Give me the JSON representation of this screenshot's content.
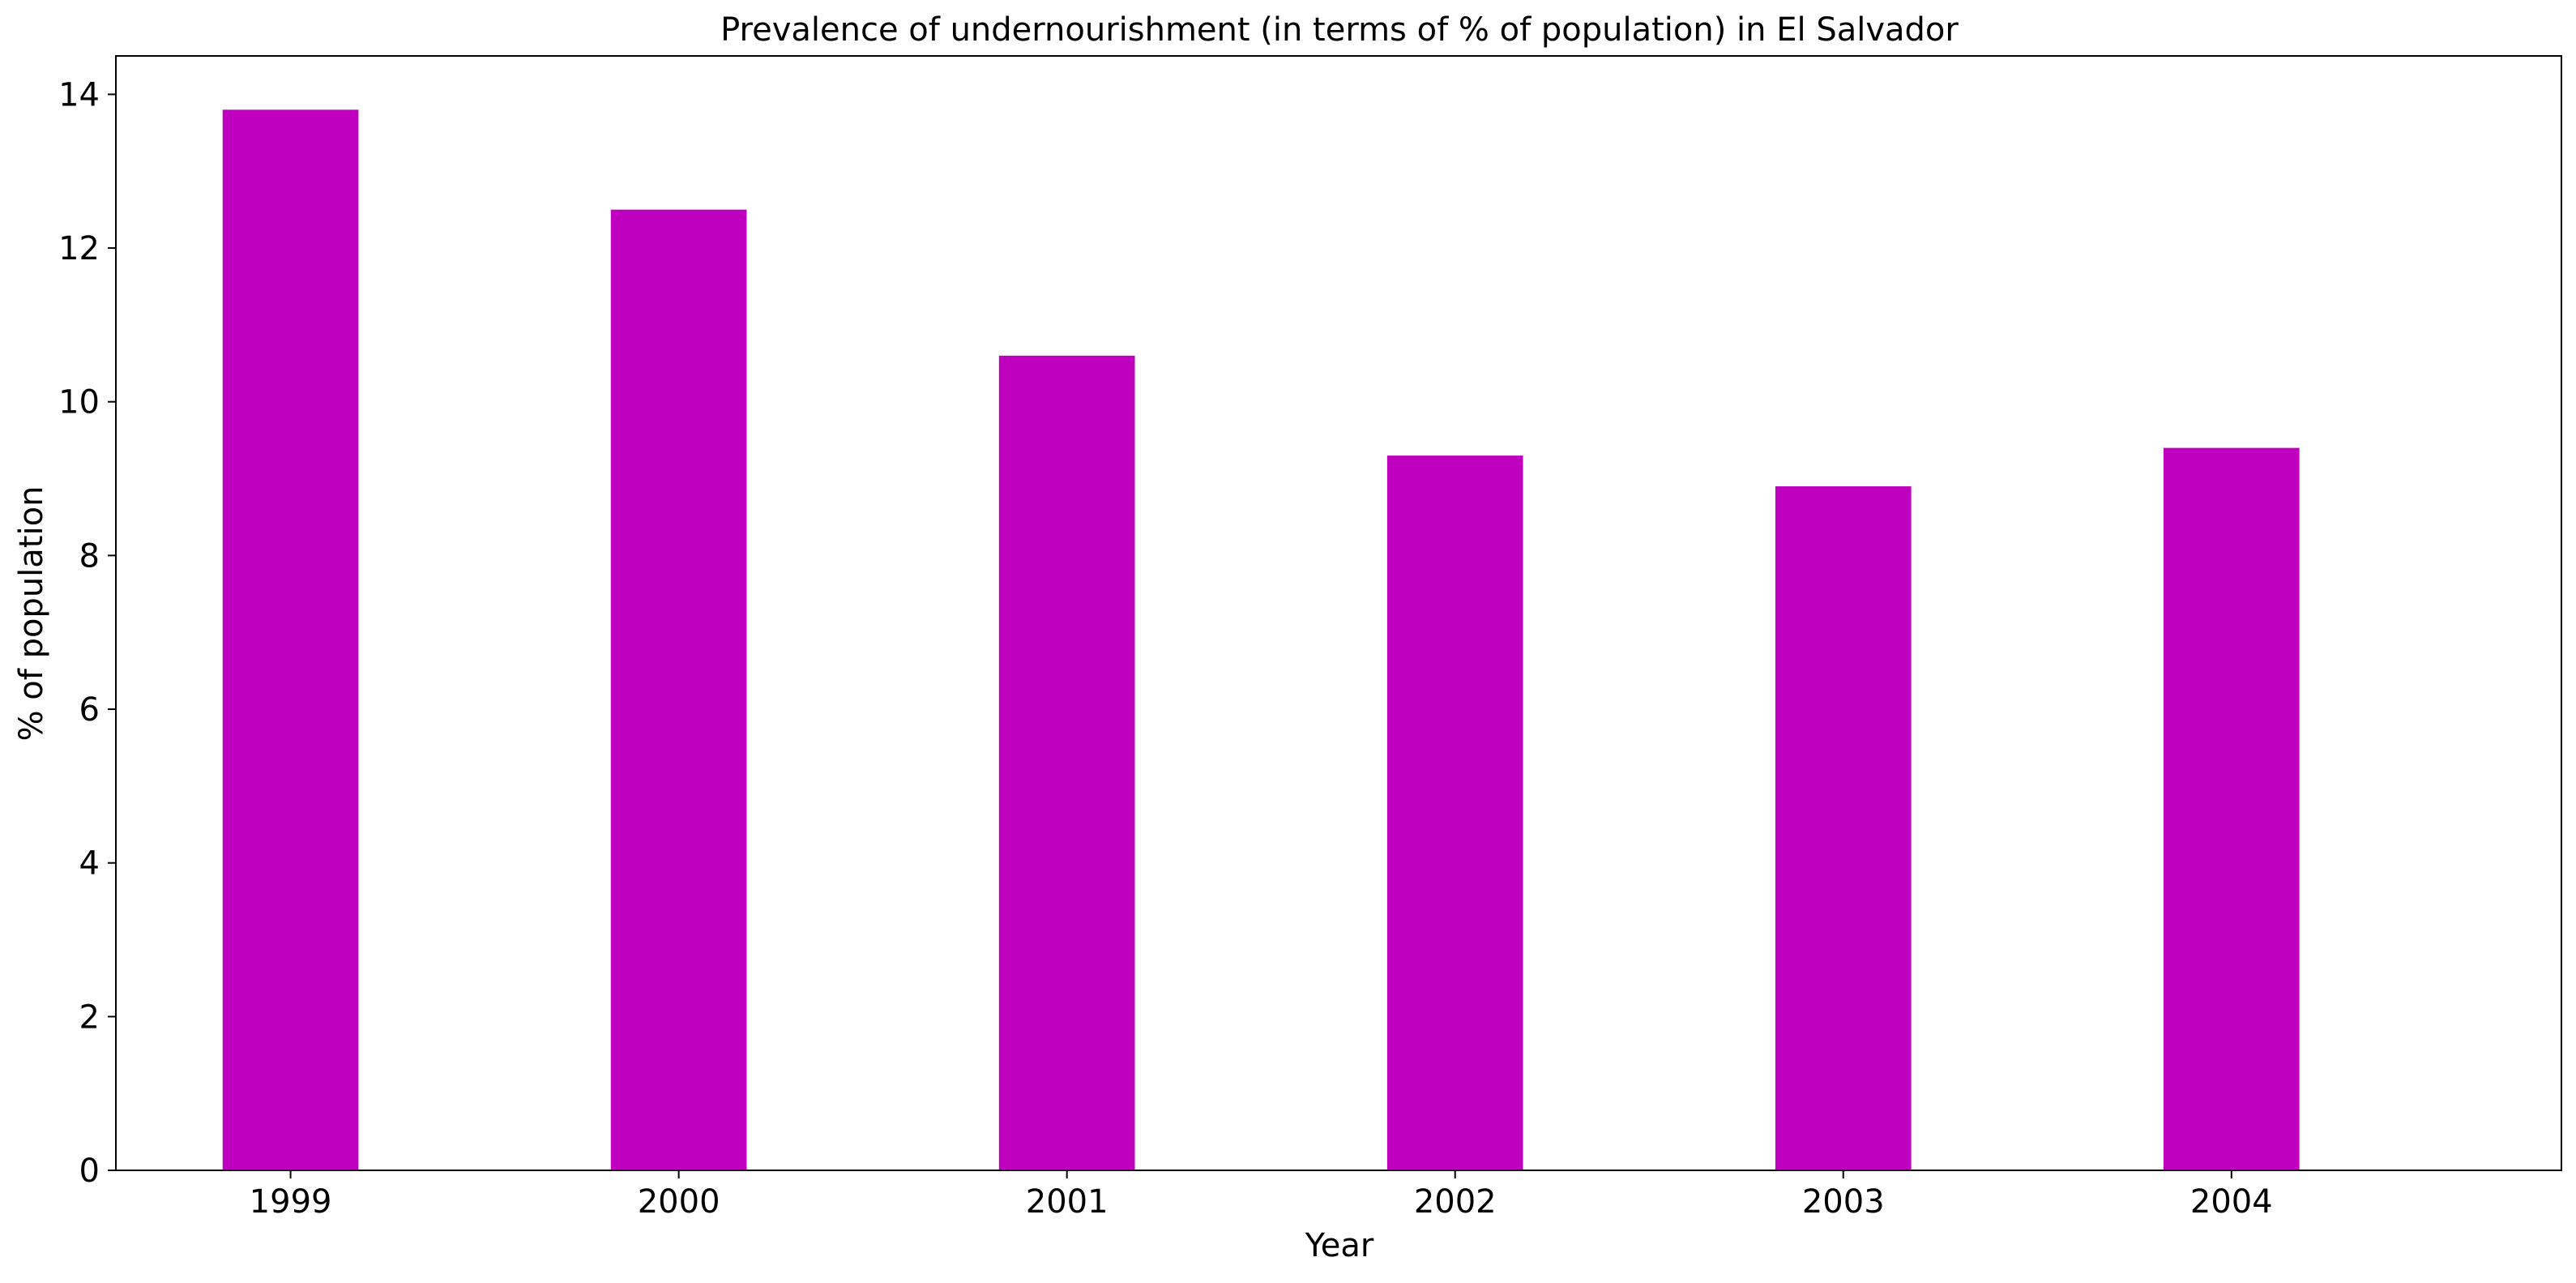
{
  "chart_data": {
    "type": "bar",
    "title": "Prevalence of undernourishment (in terms of % of population) in El Salvador",
    "xlabel": "Year",
    "ylabel": "% of population",
    "categories": [
      "1999",
      "2000",
      "2001",
      "2002",
      "2003",
      "2004"
    ],
    "values": [
      13.8,
      12.5,
      10.6,
      9.3,
      8.9,
      9.4
    ],
    "ylim": [
      0,
      14.5
    ],
    "yticks": [
      0,
      2,
      4,
      6,
      8,
      10,
      12,
      14
    ],
    "grid": false,
    "legend": "none",
    "bar_color": "#bf00bf"
  }
}
